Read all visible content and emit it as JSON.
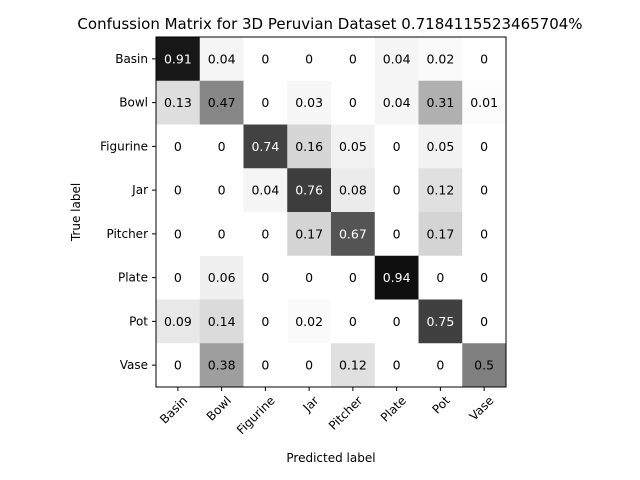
{
  "chart_data": {
    "type": "heatmap",
    "title": "Confussion Matrix for 3D Peruvian Dataset 0.7184115523465704%",
    "xlabel": "Predicted label",
    "ylabel": "True label",
    "colormap": "greys",
    "value_range": [
      0,
      1
    ],
    "row_labels": [
      "Basin",
      "Bowl",
      "Figurine",
      "Jar",
      "Pitcher",
      "Plate",
      "Pot",
      "Vase"
    ],
    "col_labels": [
      "Basin",
      "Bowl",
      "Figurine",
      "Jar",
      "Pitcher",
      "Plate",
      "Pot",
      "Vase"
    ],
    "values": [
      [
        0.91,
        0.04,
        0,
        0,
        0,
        0.04,
        0.02,
        0
      ],
      [
        0.13,
        0.47,
        0,
        0.03,
        0,
        0.04,
        0.31,
        0.01
      ],
      [
        0,
        0,
        0.74,
        0.16,
        0.05,
        0,
        0.05,
        0
      ],
      [
        0,
        0,
        0.04,
        0.76,
        0.08,
        0,
        0.12,
        0
      ],
      [
        0,
        0,
        0,
        0.17,
        0.67,
        0,
        0.17,
        0
      ],
      [
        0,
        0.06,
        0,
        0,
        0,
        0.94,
        0,
        0
      ],
      [
        0.09,
        0.14,
        0,
        0.02,
        0,
        0,
        0.75,
        0
      ],
      [
        0,
        0.38,
        0,
        0,
        0.12,
        0,
        0,
        0.5
      ]
    ],
    "grid": false,
    "legend": "none"
  }
}
